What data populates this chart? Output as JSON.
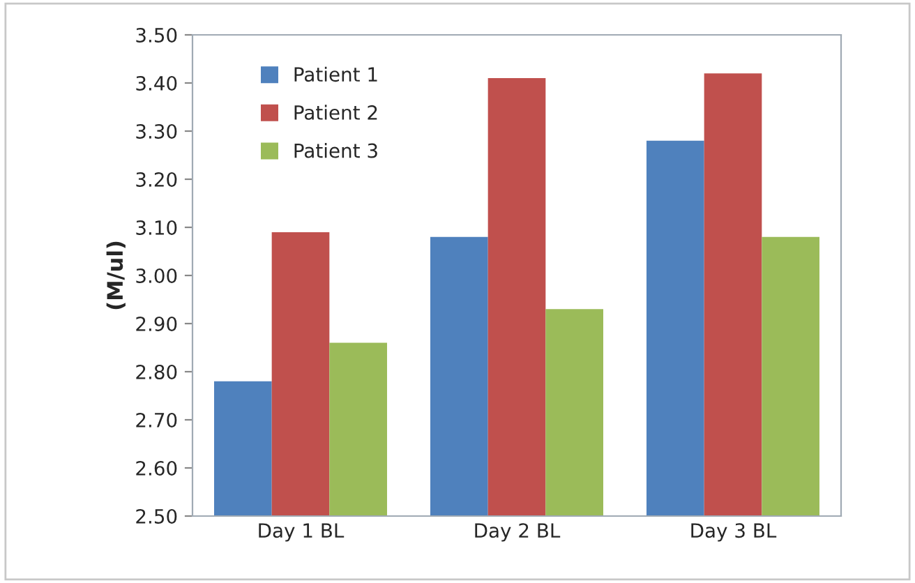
{
  "chart_data": {
    "type": "bar",
    "ylabel": "(M/ul)",
    "categories": [
      "Day 1 BL",
      "Day 2 BL",
      "Day 3 BL"
    ],
    "series": [
      {
        "name": "Patient 1",
        "color": "#4f81bd",
        "values": [
          2.78,
          3.08,
          3.28
        ]
      },
      {
        "name": "Patient 2",
        "color": "#c0504d",
        "values": [
          3.09,
          3.41,
          3.42
        ]
      },
      {
        "name": "Patient 3",
        "color": "#9bbb59",
        "values": [
          2.86,
          2.93,
          3.08
        ]
      }
    ],
    "ylim": [
      2.5,
      3.5
    ],
    "yticks": [
      {
        "value": 2.5,
        "label": "2.50"
      },
      {
        "value": 2.6,
        "label": "2.60"
      },
      {
        "value": 2.7,
        "label": "2.70"
      },
      {
        "value": 2.8,
        "label": "2.80"
      },
      {
        "value": 2.9,
        "label": "2.90"
      },
      {
        "value": 3.0,
        "label": "3.00"
      },
      {
        "value": 3.1,
        "label": "3.10"
      },
      {
        "value": 3.2,
        "label": "3.20"
      },
      {
        "value": 3.3,
        "label": "3.30"
      },
      {
        "value": 3.4,
        "label": "3.40"
      },
      {
        "value": 3.5,
        "label": "3.50"
      }
    ],
    "grid": false,
    "legend": "top left"
  }
}
